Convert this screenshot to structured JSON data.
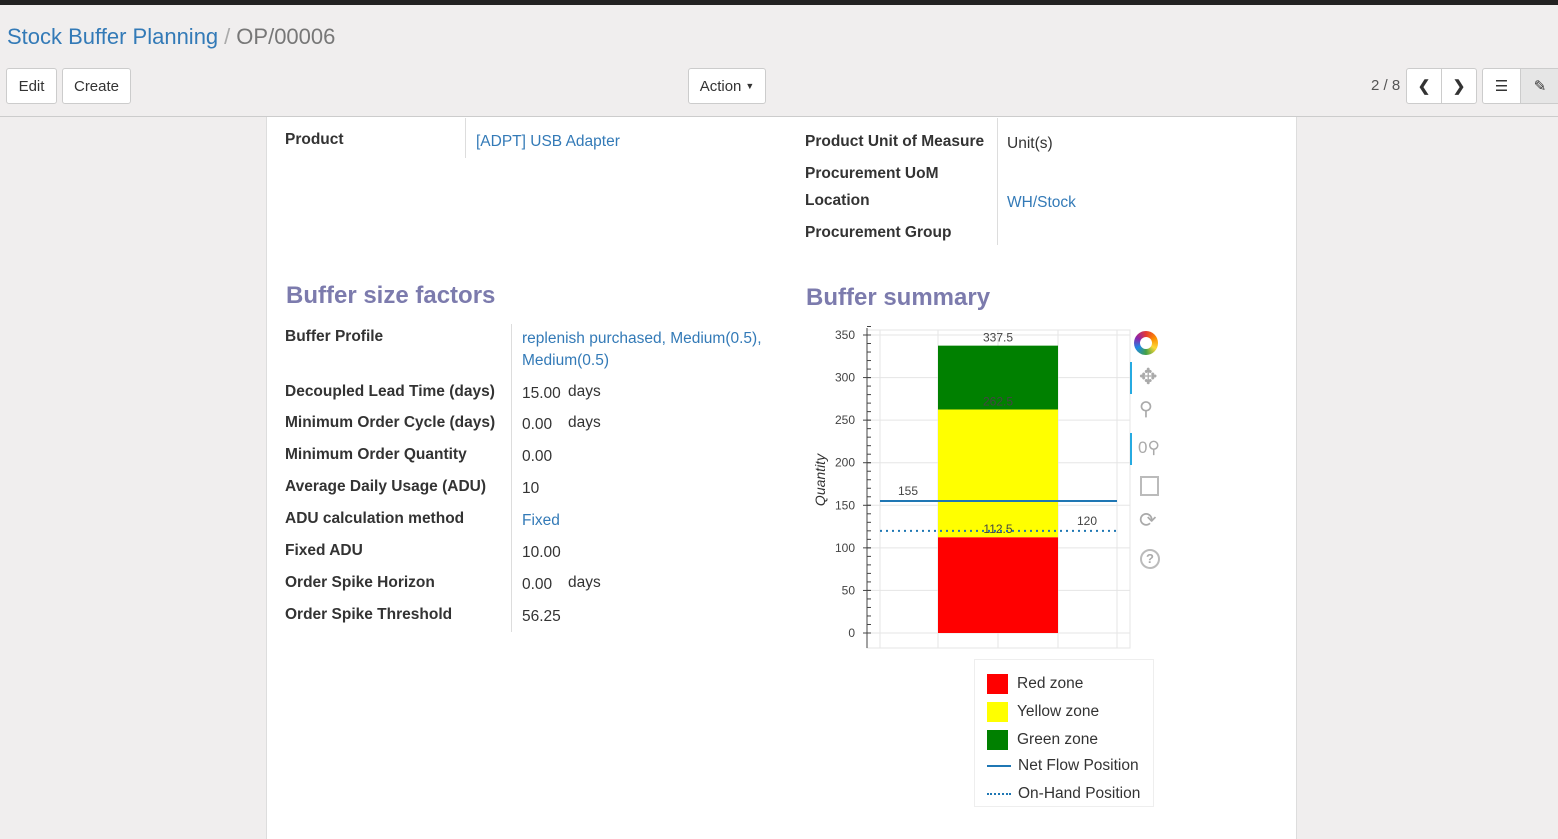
{
  "breadcrumb": {
    "parent": "Stock Buffer Planning",
    "current": "OP/00006"
  },
  "toolbar": {
    "edit": "Edit",
    "create": "Create",
    "action": "Action",
    "pager": "2 / 8"
  },
  "form": {
    "product_label": "Product",
    "product_value": "[ADPT] USB Adapter",
    "uom_label": "Product Unit of Measure",
    "uom_value": "Unit(s)",
    "proc_uom_label": "Procurement UoM",
    "location_label": "Location",
    "location_value": "WH/Stock",
    "proc_group_label": "Procurement Group"
  },
  "factors": {
    "title": "Buffer size factors",
    "rows": [
      {
        "label": "Buffer Profile",
        "value": "replenish purchased, Medium(0.5), Medium(0.5)",
        "link": true
      },
      {
        "label": "Decoupled Lead Time (days)",
        "value": "15.00",
        "unit": "days"
      },
      {
        "label": "Minimum Order Cycle (days)",
        "value": "0.00",
        "unit": "days"
      },
      {
        "label": "Minimum Order Quantity",
        "value": "0.00"
      },
      {
        "label": "Average Daily Usage (ADU)",
        "value": "10"
      },
      {
        "label": "ADU calculation method",
        "value": "Fixed",
        "link": true
      },
      {
        "label": "Fixed ADU",
        "value": "10.00"
      },
      {
        "label": "Order Spike Horizon",
        "value": "0.00",
        "unit": "days"
      },
      {
        "label": "Order Spike Threshold",
        "value": "56.25"
      }
    ]
  },
  "summary": {
    "title": "Buffer summary"
  },
  "chart_data": {
    "type": "bar",
    "ylabel": "Quantity",
    "ylim": [
      0,
      350
    ],
    "yticks": [
      0,
      50,
      100,
      150,
      200,
      250,
      300,
      350
    ],
    "stacked": [
      {
        "name": "Red zone",
        "from": 0,
        "to": 112.5,
        "color": "#ff0000",
        "label": "112.5"
      },
      {
        "name": "Yellow zone",
        "from": 112.5,
        "to": 262.5,
        "color": "#ffff00",
        "label": "262.5"
      },
      {
        "name": "Green zone",
        "from": 262.5,
        "to": 337.5,
        "color": "#008000",
        "label": "337.5"
      }
    ],
    "lines": [
      {
        "name": "Net Flow Position",
        "value": 155,
        "style": "solid",
        "color": "#1f77b4",
        "label": "155"
      },
      {
        "name": "On-Hand Position",
        "value": 120,
        "style": "dotted",
        "color": "#1f77b4",
        "label": "120"
      }
    ],
    "grid": true,
    "legend": "bottom"
  }
}
